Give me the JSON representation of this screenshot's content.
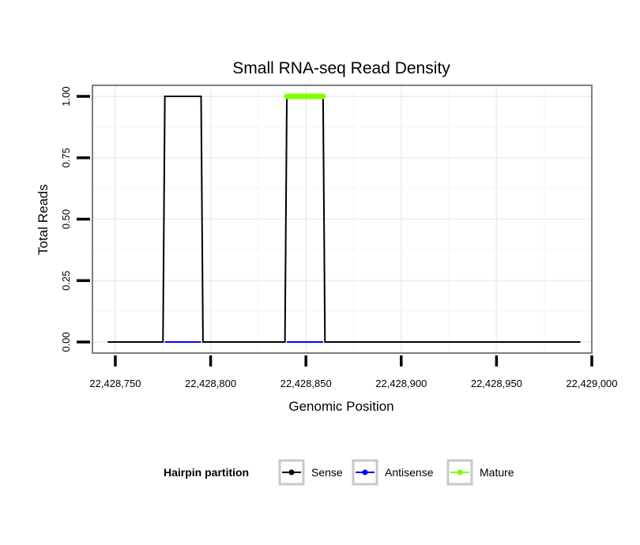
{
  "chart_data": {
    "type": "line",
    "title": "Small RNA-seq Read Density",
    "xlabel": "Genomic Position",
    "ylabel": "Total Reads",
    "xlim": [
      22428738,
      22429000
    ],
    "ylim": [
      -0.045,
      1.045
    ],
    "x_ticks": [
      22428750,
      22428800,
      22428850,
      22428900,
      22428950,
      22429000
    ],
    "x_tick_labels": [
      "22,428,750",
      "22,428,800",
      "22,428,850",
      "22,428,900",
      "22,428,950",
      "22,429,000"
    ],
    "y_ticks": [
      0,
      0.25,
      0.5,
      0.75,
      1.0
    ],
    "y_tick_labels": [
      "0.00",
      "0.25",
      "0.50",
      "0.75",
      "1.00"
    ],
    "grid": true,
    "legend": {
      "title": "Hairpin partition",
      "position": "bottom"
    },
    "series": [
      {
        "name": "Sense",
        "color": "#000000",
        "x": [
          22428746,
          22428775,
          22428776,
          22428795,
          22428796,
          22428839,
          22428840,
          22428859,
          22428860,
          22428994
        ],
        "y": [
          0,
          0,
          1,
          1,
          0,
          0,
          1,
          1,
          0,
          0
        ]
      },
      {
        "name": "Antisense",
        "color": "#0000ff",
        "x": [
          22428776,
          22428795,
          22428840,
          22428859
        ],
        "y": [
          0,
          0,
          0,
          0
        ],
        "segments": [
          [
            0,
            1
          ],
          [
            2,
            3
          ]
        ]
      },
      {
        "name": "Mature",
        "color": "#7fff00",
        "x": [
          22428840,
          22428859
        ],
        "y": [
          1,
          1
        ]
      }
    ]
  }
}
